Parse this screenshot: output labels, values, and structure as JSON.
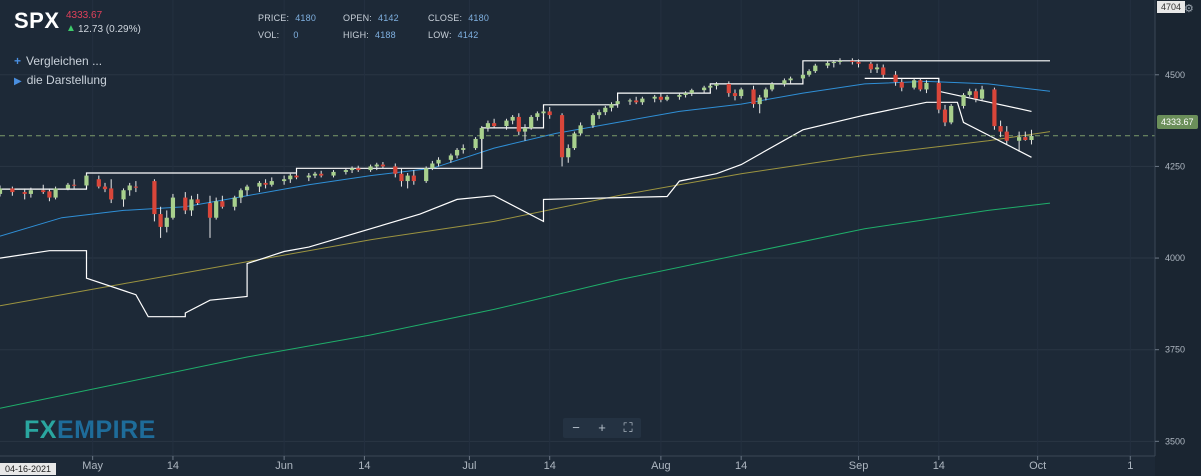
{
  "header": {
    "symbol": "SPX",
    "last": "4333.67",
    "change": "12.73 (0.29%)",
    "price_label": "PRICE:",
    "price": "4180",
    "open_label": "OPEN:",
    "open": "4142",
    "close_label": "CLOSE:",
    "close": "4180",
    "vol_label": "VOL:",
    "vol": "0",
    "high_label": "HIGH:",
    "high": "4188",
    "low_label": "LOW:",
    "low": "4142"
  },
  "side": {
    "compare": "Vergleichen ...",
    "display": "die Darstellung"
  },
  "tags": {
    "current_price": "4333.67",
    "axis_top": "4704",
    "start_date": "04-16-2021"
  },
  "logo": {
    "fx": "FX",
    "empire": "EMPIRE"
  },
  "zoom": {
    "minus": "−",
    "plus": "+",
    "fit": "⛶"
  },
  "colors": {
    "background": "#1d2937",
    "up": "#a8d08d",
    "down": "#d9463a",
    "ma_short": "#2f8fd6",
    "ma_mid": "#9c9440",
    "ma_long": "#1fae6a",
    "channel": "#ffffff",
    "price_line": "#7d9a6a"
  },
  "chart_data": {
    "type": "candlestick",
    "y_axis": {
      "min": 3460,
      "max": 4704,
      "ticks": [
        3500,
        3750,
        4000,
        4250,
        4500
      ]
    },
    "x_axis": {
      "labels": [
        "May",
        "14",
        "Jun",
        "14",
        "Jul",
        "14",
        "Aug",
        "14",
        "Sep",
        "14",
        "Oct",
        "1"
      ],
      "label_days": [
        15,
        28,
        46,
        59,
        76,
        89,
        107,
        120,
        139,
        152,
        168,
        183
      ],
      "day_min": 0,
      "day_max": 187
    },
    "current_price": 4333.67,
    "candles": [
      [
        0,
        4175,
        4198,
        4168,
        4190
      ],
      [
        2,
        4190,
        4195,
        4170,
        4180
      ],
      [
        4,
        4180,
        4190,
        4160,
        4175
      ],
      [
        5,
        4175,
        4192,
        4165,
        4185
      ],
      [
        7,
        4185,
        4200,
        4175,
        4180
      ],
      [
        8,
        4182,
        4190,
        4155,
        4165
      ],
      [
        9,
        4165,
        4195,
        4160,
        4190
      ],
      [
        11,
        4190,
        4205,
        4185,
        4200
      ],
      [
        12,
        4200,
        4215,
        4190,
        4198
      ],
      [
        14,
        4198,
        4230,
        4195,
        4225
      ],
      [
        16,
        4215,
        4225,
        4190,
        4195
      ],
      [
        17,
        4195,
        4205,
        4180,
        4188
      ],
      [
        18,
        4190,
        4215,
        4150,
        4160
      ],
      [
        20,
        4160,
        4190,
        4140,
        4185
      ],
      [
        21,
        4185,
        4205,
        4170,
        4198
      ],
      [
        22,
        4195,
        4210,
        4180,
        4192
      ],
      [
        25,
        4210,
        4215,
        4100,
        4120
      ],
      [
        26,
        4120,
        4140,
        4055,
        4085
      ],
      [
        27,
        4085,
        4130,
        4070,
        4110
      ],
      [
        28,
        4110,
        4175,
        4105,
        4165
      ],
      [
        30,
        4165,
        4180,
        4120,
        4130
      ],
      [
        31,
        4130,
        4170,
        4115,
        4160
      ],
      [
        32,
        4160,
        4175,
        4145,
        4150
      ],
      [
        34,
        4150,
        4170,
        4055,
        4110
      ],
      [
        35,
        4110,
        4165,
        4105,
        4155
      ],
      [
        36,
        4155,
        4170,
        4135,
        4140
      ],
      [
        38,
        4140,
        4170,
        4130,
        4165
      ],
      [
        39,
        4165,
        4190,
        4150,
        4185
      ],
      [
        40,
        4185,
        4200,
        4170,
        4195
      ],
      [
        42,
        4195,
        4210,
        4180,
        4205
      ],
      [
        43,
        4205,
        4215,
        4190,
        4200
      ],
      [
        44,
        4200,
        4220,
        4195,
        4210
      ],
      [
        46,
        4210,
        4225,
        4200,
        4215
      ],
      [
        47,
        4215,
        4230,
        4205,
        4225
      ],
      [
        48,
        4225,
        4235,
        4215,
        4220
      ],
      [
        50,
        4220,
        4232,
        4210,
        4225
      ],
      [
        51,
        4225,
        4235,
        4218,
        4230
      ],
      [
        52,
        4230,
        4238,
        4220,
        4225
      ],
      [
        54,
        4225,
        4240,
        4220,
        4235
      ],
      [
        56,
        4235,
        4245,
        4228,
        4240
      ],
      [
        57,
        4240,
        4250,
        4232,
        4245
      ],
      [
        58,
        4245,
        4252,
        4235,
        4240
      ],
      [
        60,
        4240,
        4255,
        4235,
        4250
      ],
      [
        61,
        4250,
        4260,
        4240,
        4255
      ],
      [
        62,
        4255,
        4262,
        4245,
        4250
      ],
      [
        64,
        4250,
        4258,
        4220,
        4230
      ],
      [
        65,
        4230,
        4245,
        4195,
        4210
      ],
      [
        66,
        4210,
        4232,
        4190,
        4225
      ],
      [
        67,
        4225,
        4240,
        4200,
        4210
      ],
      [
        69,
        4210,
        4250,
        4205,
        4245
      ],
      [
        70,
        4245,
        4265,
        4240,
        4258
      ],
      [
        71,
        4258,
        4275,
        4250,
        4268
      ],
      [
        73,
        4268,
        4285,
        4260,
        4280
      ],
      [
        74,
        4280,
        4300,
        4272,
        4295
      ],
      [
        75,
        4295,
        4310,
        4285,
        4300
      ],
      [
        77,
        4300,
        4330,
        4295,
        4325
      ],
      [
        78,
        4325,
        4360,
        4320,
        4355
      ],
      [
        79,
        4355,
        4375,
        4345,
        4368
      ],
      [
        80,
        4368,
        4380,
        4355,
        4360
      ],
      [
        82,
        4360,
        4380,
        4350,
        4375
      ],
      [
        83,
        4375,
        4390,
        4365,
        4385
      ],
      [
        84,
        4385,
        4395,
        4335,
        4345
      ],
      [
        85,
        4345,
        4365,
        4320,
        4355
      ],
      [
        86,
        4355,
        4390,
        4350,
        4385
      ],
      [
        87,
        4385,
        4400,
        4375,
        4395
      ],
      [
        88,
        4395,
        4410,
        4385,
        4400
      ],
      [
        89,
        4400,
        4412,
        4380,
        4390
      ],
      [
        91,
        4390,
        4395,
        4250,
        4275
      ],
      [
        92,
        4275,
        4310,
        4260,
        4300
      ],
      [
        93,
        4300,
        4345,
        4295,
        4340
      ],
      [
        94,
        4340,
        4370,
        4335,
        4362
      ],
      [
        96,
        4362,
        4395,
        4355,
        4390
      ],
      [
        97,
        4390,
        4405,
        4380,
        4398
      ],
      [
        98,
        4398,
        4415,
        4390,
        4410
      ],
      [
        99,
        4410,
        4425,
        4400,
        4420
      ],
      [
        100,
        4420,
        4435,
        4410,
        4428
      ],
      [
        102,
        4428,
        4435,
        4418,
        4430
      ],
      [
        103,
        4430,
        4440,
        4420,
        4425
      ],
      [
        104,
        4425,
        4440,
        4418,
        4435
      ],
      [
        106,
        4435,
        4445,
        4425,
        4440
      ],
      [
        107,
        4440,
        4450,
        4425,
        4432
      ],
      [
        108,
        4432,
        4445,
        4428,
        4440
      ],
      [
        110,
        4440,
        4450,
        4432,
        4445
      ],
      [
        111,
        4445,
        4455,
        4438,
        4450
      ],
      [
        112,
        4450,
        4462,
        4442,
        4458
      ],
      [
        114,
        4458,
        4470,
        4450,
        4465
      ],
      [
        115,
        4465,
        4475,
        4455,
        4470
      ],
      [
        116,
        4470,
        4480,
        4460,
        4475
      ],
      [
        118,
        4475,
        4482,
        4440,
        4450
      ],
      [
        119,
        4450,
        4460,
        4430,
        4442
      ],
      [
        120,
        4442,
        4465,
        4435,
        4460
      ],
      [
        122,
        4460,
        4470,
        4410,
        4420
      ],
      [
        123,
        4420,
        4445,
        4395,
        4438
      ],
      [
        124,
        4438,
        4465,
        4430,
        4460
      ],
      [
        125,
        4460,
        4480,
        4455,
        4475
      ],
      [
        127,
        4475,
        4490,
        4468,
        4485
      ],
      [
        128,
        4485,
        4495,
        4475,
        4490
      ],
      [
        130,
        4490,
        4505,
        4485,
        4500
      ],
      [
        131,
        4500,
        4515,
        4495,
        4510
      ],
      [
        132,
        4510,
        4530,
        4505,
        4525
      ],
      [
        134,
        4525,
        4538,
        4518,
        4532
      ],
      [
        135,
        4532,
        4540,
        4520,
        4535
      ],
      [
        136,
        4535,
        4545,
        4528,
        4538
      ],
      [
        138,
        4538,
        4545,
        4528,
        4535
      ],
      [
        139,
        4535,
        4542,
        4520,
        4530
      ],
      [
        141,
        4530,
        4535,
        4505,
        4515
      ],
      [
        142,
        4515,
        4530,
        4505,
        4520
      ],
      [
        143,
        4520,
        4528,
        4490,
        4500
      ],
      [
        145,
        4500,
        4510,
        4470,
        4480
      ],
      [
        146,
        4480,
        4490,
        4455,
        4465
      ],
      [
        148,
        4465,
        4490,
        4460,
        4485
      ],
      [
        149,
        4485,
        4490,
        4455,
        4460
      ],
      [
        150,
        4460,
        4485,
        4450,
        4478
      ],
      [
        152,
        4478,
        4480,
        4395,
        4405
      ],
      [
        153,
        4405,
        4418,
        4360,
        4370
      ],
      [
        154,
        4370,
        4420,
        4365,
        4415
      ],
      [
        156,
        4415,
        4450,
        4408,
        4445
      ],
      [
        157,
        4445,
        4462,
        4440,
        4455
      ],
      [
        158,
        4455,
        4462,
        4425,
        4435
      ],
      [
        159,
        4435,
        4470,
        4428,
        4460
      ],
      [
        161,
        4460,
        4465,
        4350,
        4360
      ],
      [
        162,
        4360,
        4375,
        4330,
        4345
      ],
      [
        163,
        4345,
        4360,
        4310,
        4320
      ],
      [
        165,
        4320,
        4345,
        4290,
        4330
      ],
      [
        166,
        4330,
        4345,
        4320,
        4322
      ],
      [
        167,
        4322,
        4350,
        4310,
        4333
      ]
    ],
    "ma_short": [
      [
        0,
        4060
      ],
      [
        10,
        4110
      ],
      [
        20,
        4130
      ],
      [
        30,
        4140
      ],
      [
        40,
        4170
      ],
      [
        50,
        4200
      ],
      [
        60,
        4225
      ],
      [
        70,
        4245
      ],
      [
        80,
        4300
      ],
      [
        90,
        4340
      ],
      [
        100,
        4370
      ],
      [
        110,
        4400
      ],
      [
        120,
        4420
      ],
      [
        130,
        4450
      ],
      [
        140,
        4475
      ],
      [
        150,
        4482
      ],
      [
        160,
        4475
      ],
      [
        170,
        4455
      ]
    ],
    "ma_mid": [
      [
        0,
        3870
      ],
      [
        20,
        3930
      ],
      [
        40,
        3990
      ],
      [
        60,
        4050
      ],
      [
        80,
        4100
      ],
      [
        100,
        4170
      ],
      [
        120,
        4230
      ],
      [
        140,
        4280
      ],
      [
        160,
        4320
      ],
      [
        170,
        4345
      ]
    ],
    "ma_long": [
      [
        0,
        3590
      ],
      [
        20,
        3660
      ],
      [
        40,
        3730
      ],
      [
        60,
        3790
      ],
      [
        80,
        3860
      ],
      [
        100,
        3940
      ],
      [
        120,
        4010
      ],
      [
        140,
        4080
      ],
      [
        160,
        4130
      ],
      [
        170,
        4150
      ]
    ],
    "channel_upper": [
      [
        0,
        4188
      ],
      [
        14,
        4188
      ],
      [
        14,
        4232
      ],
      [
        48,
        4232
      ],
      [
        48,
        4245
      ],
      [
        78,
        4245
      ],
      [
        78,
        4355
      ],
      [
        88,
        4355
      ],
      [
        88,
        4418
      ],
      [
        100,
        4418
      ],
      [
        100,
        4450
      ],
      [
        115,
        4450
      ],
      [
        115,
        4475
      ],
      [
        130,
        4475
      ],
      [
        130,
        4538
      ],
      [
        170,
        4538
      ]
    ],
    "channel_lower": [
      [
        0,
        4000
      ],
      [
        8,
        4020
      ],
      [
        14,
        4020
      ],
      [
        14,
        3945
      ],
      [
        22,
        3900
      ],
      [
        24,
        3840
      ],
      [
        30,
        3840
      ],
      [
        30,
        3850
      ],
      [
        34,
        3885
      ],
      [
        40,
        3895
      ],
      [
        40,
        3985
      ],
      [
        46,
        4018
      ],
      [
        50,
        4030
      ],
      [
        68,
        4120
      ],
      [
        74,
        4160
      ],
      [
        80,
        4170
      ],
      [
        88,
        4100
      ],
      [
        88,
        4160
      ],
      [
        108,
        4168
      ],
      [
        110,
        4210
      ],
      [
        116,
        4230
      ],
      [
        120,
        4255
      ],
      [
        130,
        4350
      ],
      [
        140,
        4390
      ],
      [
        150,
        4425
      ],
      [
        155,
        4425
      ],
      [
        156,
        4370
      ],
      [
        167,
        4275
      ]
    ],
    "channel_recent_upper": [
      [
        140,
        4490
      ],
      [
        152,
        4490
      ],
      [
        152,
        4455
      ],
      [
        167,
        4400
      ]
    ]
  }
}
